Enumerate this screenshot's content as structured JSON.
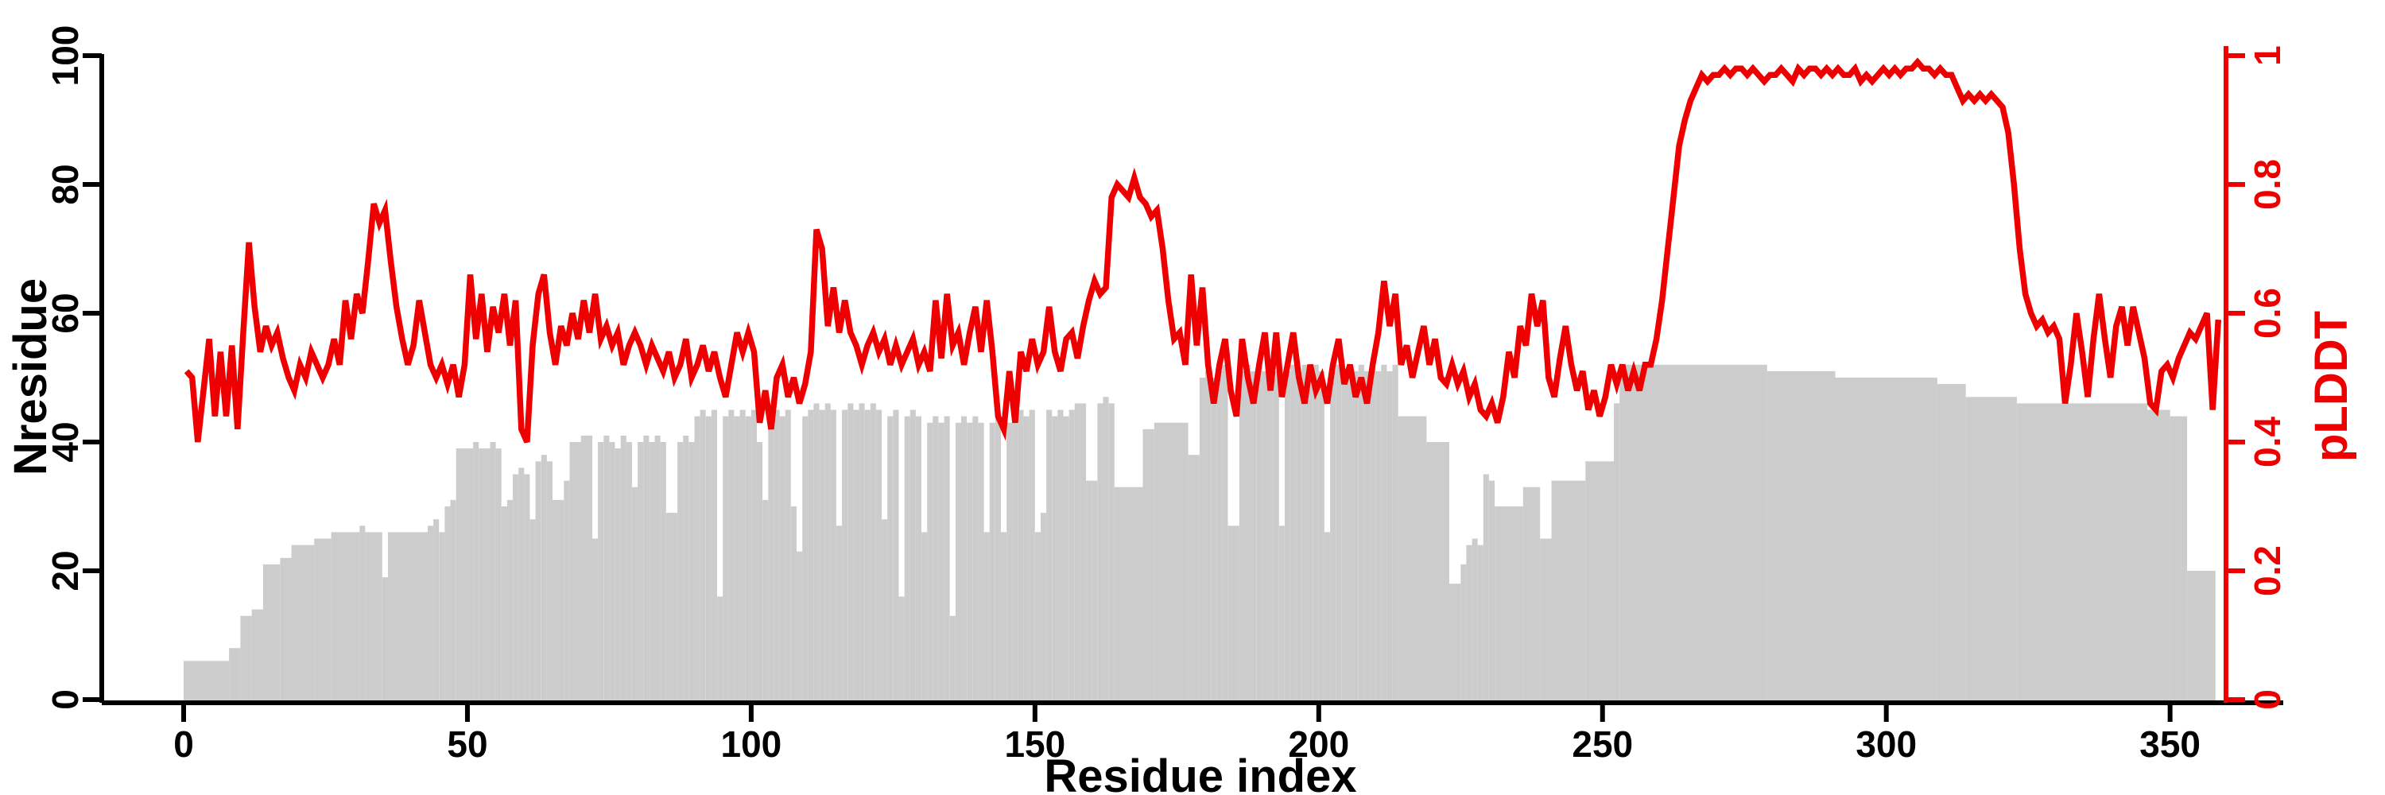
{
  "figure": {
    "background": "#ffffff",
    "bar_color": "#cccccc",
    "line_color": "#ee0000",
    "axis_color": "#000000"
  },
  "chart_data": {
    "type": "bar",
    "subtype": "dual-axis bar+line profile",
    "title": "",
    "x_axis": {
      "label": "Residue index",
      "ticks": [
        0,
        50,
        100,
        150,
        200,
        250,
        300,
        350
      ],
      "range": [
        0,
        370
      ],
      "grid": false
    },
    "y_left": {
      "label": "Nresidue",
      "ticks": [
        0,
        20,
        40,
        60,
        80,
        100
      ],
      "range": [
        0,
        100
      ],
      "color": "#000000",
      "series_type": "bar"
    },
    "y_right": {
      "label": "pLDDT",
      "tick_labels": [
        "0",
        "0.2",
        "0.4",
        "0.6",
        "0.8",
        "1"
      ],
      "tick_values": [
        0,
        0.2,
        0.4,
        0.6,
        0.8,
        1
      ],
      "range": [
        0,
        1
      ],
      "color": "#ee0000",
      "series_type": "line"
    },
    "bars": {
      "name": "Nresidue",
      "color": "#cccccc",
      "segments_format": [
        "start_residue",
        "end_residue_inclusive",
        "height"
      ],
      "segments": [
        [
          0,
          7,
          6
        ],
        [
          8,
          9,
          8
        ],
        [
          10,
          11,
          13
        ],
        [
          12,
          13,
          14
        ],
        [
          14,
          16,
          21
        ],
        [
          17,
          18,
          22
        ],
        [
          19,
          22,
          24
        ],
        [
          23,
          25,
          25
        ],
        [
          26,
          30,
          26
        ],
        [
          31,
          31,
          27
        ],
        [
          32,
          34,
          26
        ],
        [
          35,
          35,
          19
        ],
        [
          36,
          42,
          26
        ],
        [
          43,
          43,
          27
        ],
        [
          44,
          44,
          28
        ],
        [
          45,
          45,
          26
        ],
        [
          46,
          46,
          30
        ],
        [
          47,
          47,
          31
        ],
        [
          48,
          50,
          39
        ],
        [
          51,
          51,
          40
        ],
        [
          52,
          53,
          39
        ],
        [
          54,
          54,
          40
        ],
        [
          55,
          55,
          39
        ],
        [
          56,
          56,
          30
        ],
        [
          57,
          57,
          31
        ],
        [
          58,
          58,
          35
        ],
        [
          59,
          59,
          36
        ],
        [
          60,
          60,
          35
        ],
        [
          61,
          61,
          28
        ],
        [
          62,
          62,
          37
        ],
        [
          63,
          63,
          38
        ],
        [
          64,
          64,
          37
        ],
        [
          65,
          66,
          31
        ],
        [
          67,
          67,
          34
        ],
        [
          68,
          69,
          40
        ],
        [
          70,
          71,
          41
        ],
        [
          72,
          72,
          25
        ],
        [
          73,
          73,
          40
        ],
        [
          74,
          74,
          41
        ],
        [
          75,
          75,
          40
        ],
        [
          76,
          76,
          39
        ],
        [
          77,
          77,
          41
        ],
        [
          78,
          78,
          40
        ],
        [
          79,
          79,
          33
        ],
        [
          80,
          80,
          40
        ],
        [
          81,
          81,
          41
        ],
        [
          82,
          82,
          40
        ],
        [
          83,
          83,
          41
        ],
        [
          84,
          84,
          40
        ],
        [
          85,
          86,
          29
        ],
        [
          87,
          87,
          40
        ],
        [
          88,
          88,
          41
        ],
        [
          89,
          89,
          40
        ],
        [
          90,
          90,
          44
        ],
        [
          91,
          91,
          45
        ],
        [
          92,
          92,
          44
        ],
        [
          93,
          93,
          45
        ],
        [
          94,
          94,
          16
        ],
        [
          95,
          95,
          44
        ],
        [
          96,
          96,
          45
        ],
        [
          97,
          97,
          44
        ],
        [
          98,
          98,
          45
        ],
        [
          99,
          99,
          44
        ],
        [
          100,
          100,
          45
        ],
        [
          101,
          101,
          40
        ],
        [
          102,
          102,
          31
        ],
        [
          103,
          103,
          44
        ],
        [
          104,
          104,
          45
        ],
        [
          105,
          105,
          44
        ],
        [
          106,
          106,
          45
        ],
        [
          107,
          107,
          30
        ],
        [
          108,
          108,
          23
        ],
        [
          109,
          109,
          44
        ],
        [
          110,
          110,
          45
        ],
        [
          111,
          111,
          46
        ],
        [
          112,
          112,
          45
        ],
        [
          113,
          113,
          46
        ],
        [
          114,
          114,
          45
        ],
        [
          115,
          115,
          27
        ],
        [
          116,
          116,
          45
        ],
        [
          117,
          117,
          46
        ],
        [
          118,
          118,
          45
        ],
        [
          119,
          119,
          46
        ],
        [
          120,
          120,
          45
        ],
        [
          121,
          121,
          46
        ],
        [
          122,
          122,
          45
        ],
        [
          123,
          123,
          28
        ],
        [
          124,
          124,
          44
        ],
        [
          125,
          125,
          45
        ],
        [
          126,
          126,
          16
        ],
        [
          127,
          127,
          44
        ],
        [
          128,
          128,
          45
        ],
        [
          129,
          129,
          44
        ],
        [
          130,
          130,
          26
        ],
        [
          131,
          131,
          43
        ],
        [
          132,
          132,
          44
        ],
        [
          133,
          133,
          43
        ],
        [
          134,
          134,
          44
        ],
        [
          135,
          135,
          13
        ],
        [
          136,
          136,
          43
        ],
        [
          137,
          137,
          44
        ],
        [
          138,
          138,
          43
        ],
        [
          139,
          139,
          44
        ],
        [
          140,
          140,
          43
        ],
        [
          141,
          141,
          26
        ],
        [
          142,
          142,
          43
        ],
        [
          143,
          143,
          44
        ],
        [
          144,
          144,
          26
        ],
        [
          145,
          145,
          43
        ],
        [
          146,
          146,
          44
        ],
        [
          147,
          147,
          45
        ],
        [
          148,
          148,
          44
        ],
        [
          149,
          149,
          45
        ],
        [
          150,
          150,
          26
        ],
        [
          151,
          151,
          29
        ],
        [
          152,
          152,
          45
        ],
        [
          153,
          153,
          44
        ],
        [
          154,
          154,
          45
        ],
        [
          155,
          155,
          44
        ],
        [
          156,
          156,
          45
        ],
        [
          157,
          157,
          46
        ],
        [
          158,
          158,
          46
        ],
        [
          159,
          159,
          34
        ],
        [
          160,
          160,
          34
        ],
        [
          161,
          161,
          46
        ],
        [
          162,
          162,
          47
        ],
        [
          163,
          163,
          46
        ],
        [
          164,
          168,
          33
        ],
        [
          169,
          170,
          42
        ],
        [
          171,
          176,
          43
        ],
        [
          177,
          178,
          38
        ],
        [
          179,
          179,
          50
        ],
        [
          180,
          180,
          51
        ],
        [
          181,
          181,
          50
        ],
        [
          182,
          182,
          51
        ],
        [
          183,
          183,
          52
        ],
        [
          184,
          185,
          27
        ],
        [
          186,
          186,
          51
        ],
        [
          187,
          187,
          52
        ],
        [
          188,
          188,
          51
        ],
        [
          189,
          189,
          52
        ],
        [
          190,
          190,
          51
        ],
        [
          191,
          191,
          52
        ],
        [
          192,
          192,
          51
        ],
        [
          193,
          193,
          27
        ],
        [
          194,
          194,
          51
        ],
        [
          195,
          195,
          52
        ],
        [
          196,
          196,
          51
        ],
        [
          197,
          197,
          52
        ],
        [
          198,
          198,
          51
        ],
        [
          199,
          199,
          52
        ],
        [
          200,
          200,
          51
        ],
        [
          201,
          201,
          26
        ],
        [
          202,
          202,
          51
        ],
        [
          203,
          203,
          52
        ],
        [
          204,
          204,
          51
        ],
        [
          205,
          205,
          52
        ],
        [
          206,
          206,
          51
        ],
        [
          207,
          207,
          52
        ],
        [
          208,
          208,
          51
        ],
        [
          209,
          209,
          52
        ],
        [
          210,
          210,
          51
        ],
        [
          211,
          211,
          52
        ],
        [
          212,
          212,
          51
        ],
        [
          213,
          213,
          52
        ],
        [
          214,
          218,
          44
        ],
        [
          219,
          222,
          40
        ],
        [
          223,
          224,
          18
        ],
        [
          225,
          225,
          21
        ],
        [
          226,
          226,
          24
        ],
        [
          227,
          227,
          25
        ],
        [
          228,
          228,
          24
        ],
        [
          229,
          229,
          35
        ],
        [
          230,
          230,
          34
        ],
        [
          231,
          235,
          30
        ],
        [
          236,
          238,
          33
        ],
        [
          239,
          240,
          25
        ],
        [
          241,
          246,
          34
        ],
        [
          247,
          251,
          37
        ],
        [
          252,
          252,
          46
        ],
        [
          253,
          278,
          52
        ],
        [
          279,
          290,
          51
        ],
        [
          291,
          308,
          50
        ],
        [
          309,
          313,
          49
        ],
        [
          314,
          322,
          47
        ],
        [
          323,
          345,
          46
        ],
        [
          346,
          349,
          45
        ],
        [
          350,
          352,
          44
        ],
        [
          353,
          357,
          20
        ]
      ]
    },
    "line": {
      "name": "pLDDT",
      "color": "#ee0000",
      "x_start": 0,
      "x_step": 1,
      "values": [
        0.51,
        0.5,
        0.4,
        0.48,
        0.56,
        0.44,
        0.54,
        0.44,
        0.55,
        0.42,
        0.57,
        0.71,
        0.61,
        0.54,
        0.58,
        0.55,
        0.57,
        0.53,
        0.5,
        0.48,
        0.52,
        0.5,
        0.54,
        0.52,
        0.5,
        0.52,
        0.56,
        0.52,
        0.62,
        0.56,
        0.63,
        0.6,
        0.68,
        0.77,
        0.74,
        0.76,
        0.68,
        0.61,
        0.56,
        0.52,
        0.55,
        0.62,
        0.57,
        0.52,
        0.5,
        0.52,
        0.49,
        0.52,
        0.47,
        0.52,
        0.66,
        0.56,
        0.63,
        0.54,
        0.61,
        0.57,
        0.63,
        0.55,
        0.62,
        0.42,
        0.4,
        0.55,
        0.63,
        0.66,
        0.57,
        0.52,
        0.58,
        0.55,
        0.6,
        0.56,
        0.62,
        0.57,
        0.63,
        0.56,
        0.58,
        0.55,
        0.57,
        0.52,
        0.55,
        0.57,
        0.55,
        0.52,
        0.55,
        0.53,
        0.51,
        0.54,
        0.5,
        0.52,
        0.56,
        0.5,
        0.52,
        0.55,
        0.51,
        0.54,
        0.5,
        0.47,
        0.52,
        0.57,
        0.54,
        0.57,
        0.54,
        0.43,
        0.48,
        0.42,
        0.5,
        0.52,
        0.47,
        0.5,
        0.46,
        0.49,
        0.54,
        0.73,
        0.7,
        0.58,
        0.64,
        0.57,
        0.62,
        0.57,
        0.55,
        0.52,
        0.55,
        0.57,
        0.54,
        0.56,
        0.52,
        0.55,
        0.52,
        0.54,
        0.56,
        0.52,
        0.54,
        0.51,
        0.62,
        0.53,
        0.63,
        0.55,
        0.57,
        0.52,
        0.57,
        0.61,
        0.54,
        0.62,
        0.54,
        0.44,
        0.42,
        0.51,
        0.43,
        0.54,
        0.51,
        0.56,
        0.52,
        0.54,
        0.61,
        0.54,
        0.51,
        0.56,
        0.57,
        0.53,
        0.58,
        0.62,
        0.65,
        0.63,
        0.64,
        0.78,
        0.8,
        0.79,
        0.78,
        0.81,
        0.78,
        0.77,
        0.75,
        0.76,
        0.7,
        0.62,
        0.56,
        0.57,
        0.52,
        0.66,
        0.55,
        0.64,
        0.52,
        0.46,
        0.52,
        0.56,
        0.48,
        0.44,
        0.56,
        0.5,
        0.46,
        0.52,
        0.57,
        0.48,
        0.57,
        0.47,
        0.52,
        0.57,
        0.5,
        0.46,
        0.52,
        0.48,
        0.5,
        0.46,
        0.52,
        0.56,
        0.49,
        0.52,
        0.47,
        0.5,
        0.46,
        0.52,
        0.57,
        0.65,
        0.58,
        0.63,
        0.52,
        0.55,
        0.5,
        0.54,
        0.58,
        0.52,
        0.56,
        0.5,
        0.49,
        0.52,
        0.49,
        0.51,
        0.47,
        0.49,
        0.45,
        0.44,
        0.46,
        0.43,
        0.47,
        0.54,
        0.5,
        0.58,
        0.55,
        0.63,
        0.58,
        0.62,
        0.5,
        0.47,
        0.53,
        0.58,
        0.52,
        0.48,
        0.51,
        0.45,
        0.48,
        0.44,
        0.47,
        0.52,
        0.49,
        0.52,
        0.48,
        0.51,
        0.48,
        0.52,
        0.52,
        0.56,
        0.62,
        0.7,
        0.78,
        0.86,
        0.9,
        0.93,
        0.95,
        0.97,
        0.96,
        0.97,
        0.97,
        0.98,
        0.97,
        0.98,
        0.98,
        0.97,
        0.98,
        0.97,
        0.96,
        0.97,
        0.97,
        0.98,
        0.97,
        0.96,
        0.98,
        0.97,
        0.98,
        0.98,
        0.97,
        0.98,
        0.97,
        0.98,
        0.97,
        0.97,
        0.98,
        0.96,
        0.97,
        0.96,
        0.97,
        0.98,
        0.97,
        0.98,
        0.97,
        0.98,
        0.98,
        0.99,
        0.98,
        0.98,
        0.97,
        0.98,
        0.97,
        0.97,
        0.95,
        0.93,
        0.94,
        0.93,
        0.94,
        0.93,
        0.94,
        0.93,
        0.92,
        0.88,
        0.8,
        0.7,
        0.63,
        0.6,
        0.58,
        0.59,
        0.57,
        0.58,
        0.56,
        0.46,
        0.52,
        0.6,
        0.54,
        0.47,
        0.56,
        0.63,
        0.56,
        0.5,
        0.58,
        0.61,
        0.55,
        0.61,
        0.57,
        0.53,
        0.46,
        0.45,
        0.51,
        0.52,
        0.5,
        0.53,
        0.55,
        0.57,
        0.56,
        0.58,
        0.6,
        0.45,
        0.59
      ]
    }
  }
}
